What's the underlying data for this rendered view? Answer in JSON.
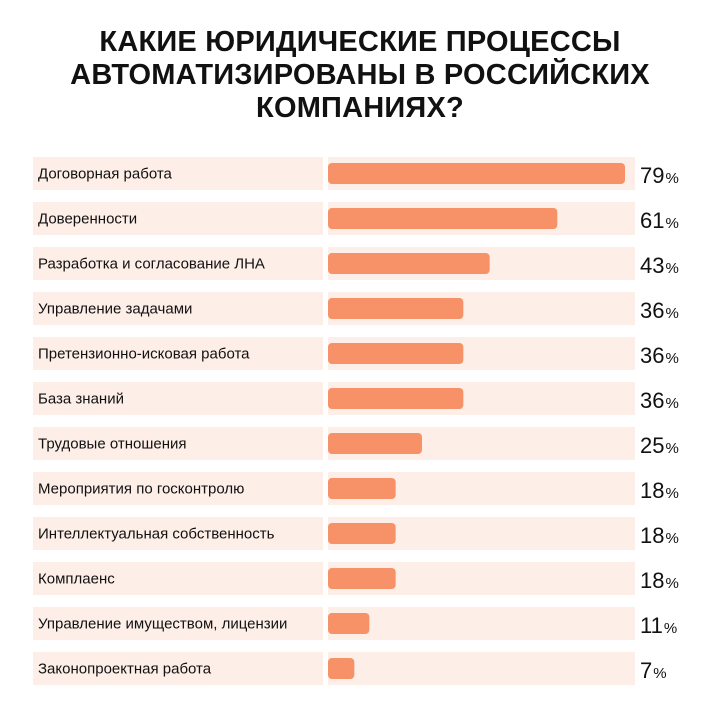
{
  "title_lines": [
    "КАКИЕ ЮРИДИЧЕСКИЕ ПРОЦЕССЫ",
    "АВТОМАТИЗИРОВАНЫ В РОССИЙСКИХ",
    "КОМПАНИЯХ?"
  ],
  "colors": {
    "bar": "#f79167",
    "row_bg": "#fdeee8",
    "text": "#111111"
  },
  "chart_data": {
    "type": "bar",
    "orientation": "horizontal",
    "categories": [
      "Договорная работа",
      "Доверенности",
      "Разработка и согласование ЛНА",
      "Управление задачами",
      "Претензионно-исковая работа",
      "База знаний",
      "Трудовые отношения",
      "Мероприятия по госконтролю",
      "Интеллектуальная собственность",
      "Комплаенс",
      "Управление имуществом, лицензии",
      "Законопроектная работа"
    ],
    "values": [
      79,
      61,
      43,
      36,
      36,
      36,
      25,
      18,
      18,
      18,
      11,
      7
    ],
    "value_suffix": "%",
    "xlim": [
      0,
      79
    ]
  }
}
